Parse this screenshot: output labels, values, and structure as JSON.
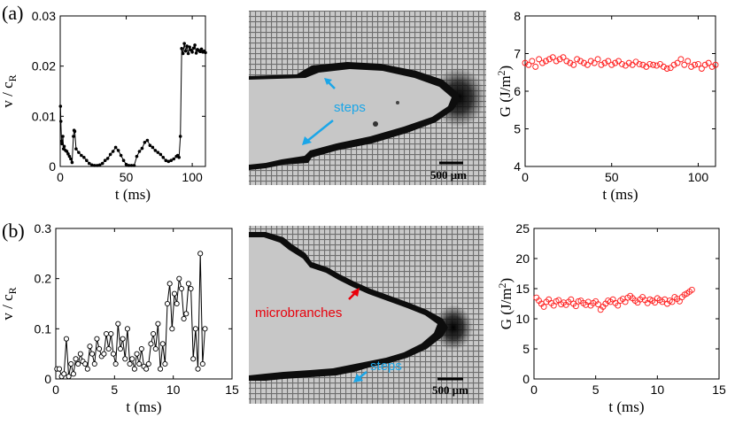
{
  "panels": {
    "a": {
      "label": "(a)",
      "image": {
        "annotation_steps": "steps",
        "scalebar": "500 μm"
      }
    },
    "b": {
      "label": "(b)",
      "image": {
        "annotation_microbranches": "microbranches",
        "annotation_steps": "steps",
        "scalebar": "500 μm"
      }
    }
  },
  "colors": {
    "steps": "#1ba6e8",
    "microbranches": "#e8000b",
    "g_series": "#ff1a1a",
    "vel_series": "#000000"
  },
  "chart_data": [
    {
      "id": "a_velocity",
      "type": "line",
      "marker": "dot",
      "xlabel": "t (ms)",
      "ylabel_main": "v / c",
      "ylabel_sub": "R",
      "xlim": [
        0,
        110
      ],
      "ylim": [
        0,
        0.03
      ],
      "xticks": [
        "0",
        "50",
        "100"
      ],
      "xtick_values": [
        0,
        50,
        100
      ],
      "yticks": [
        "0",
        "0.01",
        "0.02",
        "0.03"
      ],
      "ytick_values": [
        0,
        0.01,
        0.02,
        0.03
      ],
      "series": [
        {
          "name": "velocity",
          "x": [
            0.2,
            0.5,
            1,
            1.5,
            2,
            2.5,
            3,
            4,
            5,
            6,
            7,
            8,
            9,
            10,
            10.5,
            11,
            12,
            14,
            16,
            18,
            20,
            22,
            24,
            26,
            28,
            30,
            32,
            34,
            36,
            38,
            40,
            42,
            44,
            46,
            48,
            50,
            52,
            54,
            56,
            58,
            60,
            62,
            64,
            66,
            68,
            70,
            72,
            74,
            76,
            78,
            80,
            82,
            84,
            86,
            88,
            89,
            90,
            91,
            92,
            93,
            94,
            95,
            96,
            97,
            98,
            99,
            100,
            101,
            102,
            103,
            104,
            105,
            106,
            107,
            108,
            109,
            110
          ],
          "y": [
            0.012,
            0.009,
            0.005,
            0.0045,
            0.006,
            0.0035,
            0.004,
            0.0032,
            0.003,
            0.0025,
            0.002,
            0.0015,
            0.0008,
            0.006,
            0.0072,
            0.007,
            0.0035,
            0.0028,
            0.0022,
            0.0018,
            0.0012,
            0.0006,
            0.0003,
            0.0002,
            0.0002,
            0.0003,
            0.0006,
            0.0012,
            0.0016,
            0.0024,
            0.003,
            0.0038,
            0.0032,
            0.0022,
            0.0012,
            0.0004,
            0.0002,
            0.0002,
            0.0002,
            0.002,
            0.003,
            0.0036,
            0.0048,
            0.0052,
            0.0042,
            0.0038,
            0.0032,
            0.0028,
            0.0024,
            0.0018,
            0.0012,
            0.001,
            0.0012,
            0.0015,
            0.002,
            0.0022,
            0.0018,
            0.006,
            0.0235,
            0.0225,
            0.0245,
            0.023,
            0.024,
            0.0225,
            0.0238,
            0.0232,
            0.0228,
            0.0236,
            0.0242,
            0.0226,
            0.0233,
            0.0231,
            0.0229,
            0.0234,
            0.0228,
            0.023,
            0.0227
          ]
        }
      ]
    },
    {
      "id": "a_G",
      "type": "scatter",
      "marker": "open-circle",
      "xlabel": "t (ms)",
      "ylabel_main": "G (J/m",
      "ylabel_sup": "2",
      "ylabel_tail": ")",
      "xlim": [
        0,
        110
      ],
      "ylim": [
        4,
        8
      ],
      "xticks": [
        "0",
        "50",
        "100"
      ],
      "xtick_values": [
        0,
        50,
        100
      ],
      "yticks": [
        "4",
        "5",
        "6",
        "7",
        "8"
      ],
      "ytick_values": [
        4,
        5,
        6,
        7,
        8
      ],
      "series": [
        {
          "name": "G",
          "x": [
            0,
            2,
            4,
            6,
            8,
            10,
            12,
            14,
            16,
            18,
            20,
            22,
            24,
            26,
            28,
            30,
            32,
            34,
            36,
            38,
            40,
            42,
            44,
            46,
            48,
            50,
            52,
            54,
            56,
            58,
            60,
            62,
            64,
            66,
            68,
            70,
            72,
            74,
            76,
            78,
            80,
            82,
            84,
            86,
            88,
            90,
            92,
            94,
            96,
            98,
            100,
            102,
            104,
            106,
            108,
            110
          ],
          "y": [
            6.75,
            6.7,
            6.8,
            6.65,
            6.85,
            6.75,
            6.8,
            6.85,
            6.9,
            6.8,
            6.85,
            6.9,
            6.8,
            6.75,
            6.7,
            6.85,
            6.8,
            6.75,
            6.7,
            6.8,
            6.75,
            6.85,
            6.7,
            6.75,
            6.8,
            6.7,
            6.75,
            6.8,
            6.72,
            6.68,
            6.75,
            6.7,
            6.78,
            6.72,
            6.7,
            6.65,
            6.72,
            6.7,
            6.68,
            6.72,
            6.65,
            6.6,
            6.62,
            6.7,
            6.75,
            6.85,
            6.7,
            6.8,
            6.65,
            6.7,
            6.72,
            6.6,
            6.7,
            6.75,
            6.65,
            6.7
          ]
        }
      ]
    },
    {
      "id": "b_velocity",
      "type": "line",
      "marker": "open-circle",
      "xlabel": "t (ms)",
      "ylabel_main": "v / c",
      "ylabel_sub": "R",
      "xlim": [
        0,
        15
      ],
      "ylim": [
        0,
        0.3
      ],
      "xticks": [
        "0",
        "5",
        "10",
        "15"
      ],
      "xtick_values": [
        0,
        5,
        10,
        15
      ],
      "yticks": [
        "0",
        "0.1",
        "0.2",
        "0.3"
      ],
      "ytick_values": [
        0,
        0.1,
        0.2,
        0.3
      ],
      "series": [
        {
          "name": "velocity",
          "x": [
            0.1,
            0.3,
            0.5,
            0.7,
            0.9,
            1.1,
            1.3,
            1.5,
            1.7,
            1.9,
            2.1,
            2.3,
            2.5,
            2.7,
            2.9,
            3.1,
            3.3,
            3.5,
            3.7,
            3.9,
            4.1,
            4.3,
            4.5,
            4.7,
            4.9,
            5.1,
            5.3,
            5.5,
            5.7,
            5.9,
            6.1,
            6.3,
            6.5,
            6.7,
            6.9,
            7.1,
            7.3,
            7.5,
            7.7,
            7.9,
            8.1,
            8.3,
            8.5,
            8.7,
            8.9,
            9.1,
            9.3,
            9.5,
            9.7,
            9.9,
            10.1,
            10.3,
            10.5,
            10.7,
            10.9,
            11.1,
            11.3,
            11.5,
            11.7,
            11.9,
            12.1,
            12.3,
            12.5,
            12.7
          ],
          "y": [
            0.02,
            0.02,
            0.005,
            0.01,
            0.08,
            0.005,
            0.03,
            0.01,
            0.04,
            0.03,
            0.05,
            0.035,
            0.03,
            0.02,
            0.065,
            0.05,
            0.03,
            0.08,
            0.06,
            0.045,
            0.05,
            0.09,
            0.06,
            0.09,
            0.05,
            0.03,
            0.11,
            0.06,
            0.08,
            0.04,
            0.1,
            0.03,
            0.04,
            0.02,
            0.05,
            0.03,
            0.06,
            0.025,
            0.02,
            0.03,
            0.07,
            0.09,
            0.06,
            0.11,
            0.02,
            0.07,
            0.03,
            0.15,
            0.19,
            0.1,
            0.17,
            0.15,
            0.2,
            0.18,
            0.12,
            0.13,
            0.19,
            0.18,
            0.04,
            0.1,
            0.02,
            0.25,
            0.03,
            0.1
          ]
        }
      ]
    },
    {
      "id": "b_G",
      "type": "scatter",
      "marker": "open-circle",
      "xlabel": "t (ms)",
      "ylabel_main": "G (J/m",
      "ylabel_sup": "2",
      "ylabel_tail": ")",
      "xlim": [
        0,
        15
      ],
      "ylim": [
        0,
        25
      ],
      "xticks": [
        "0",
        "5",
        "10",
        "15"
      ],
      "xtick_values": [
        0,
        5,
        10,
        15
      ],
      "yticks": [
        "0",
        "5",
        "10",
        "15",
        "20",
        "25"
      ],
      "ytick_values": [
        0,
        5,
        10,
        15,
        20,
        25
      ],
      "series": [
        {
          "name": "G",
          "x": [
            0.2,
            0.4,
            0.6,
            0.8,
            1,
            1.2,
            1.4,
            1.6,
            1.8,
            2,
            2.2,
            2.4,
            2.6,
            2.8,
            3,
            3.2,
            3.4,
            3.6,
            3.8,
            4,
            4.2,
            4.4,
            4.6,
            4.8,
            5,
            5.2,
            5.4,
            5.6,
            5.8,
            6,
            6.2,
            6.4,
            6.6,
            6.8,
            7,
            7.2,
            7.4,
            7.6,
            7.8,
            8,
            8.2,
            8.4,
            8.6,
            8.8,
            9,
            9.2,
            9.4,
            9.6,
            9.8,
            10,
            10.2,
            10.4,
            10.6,
            10.8,
            11,
            11.2,
            11.4,
            11.6,
            11.8,
            12,
            12.2,
            12.4,
            12.6,
            12.8
          ],
          "y": [
            13.5,
            13,
            12.5,
            12,
            12.8,
            13.2,
            12.6,
            12.2,
            12.9,
            13.1,
            12.4,
            12.7,
            12.3,
            12.8,
            13.2,
            12.5,
            12.1,
            12.9,
            13,
            12.6,
            12.3,
            12.8,
            12.2,
            12.6,
            12.9,
            12.4,
            11.5,
            12,
            12.5,
            13,
            12.8,
            13.2,
            12.6,
            12.2,
            13,
            13.3,
            12.8,
            13.5,
            13.8,
            13.4,
            13,
            12.7,
            13.2,
            13.6,
            13.1,
            12.6,
            13.2,
            13,
            12.7,
            13.4,
            13.1,
            12.8,
            13.2,
            12.5,
            13,
            12.8,
            13.6,
            13.3,
            12.9,
            13.6,
            14,
            14.2,
            14.5,
            14.8
          ]
        }
      ]
    }
  ]
}
